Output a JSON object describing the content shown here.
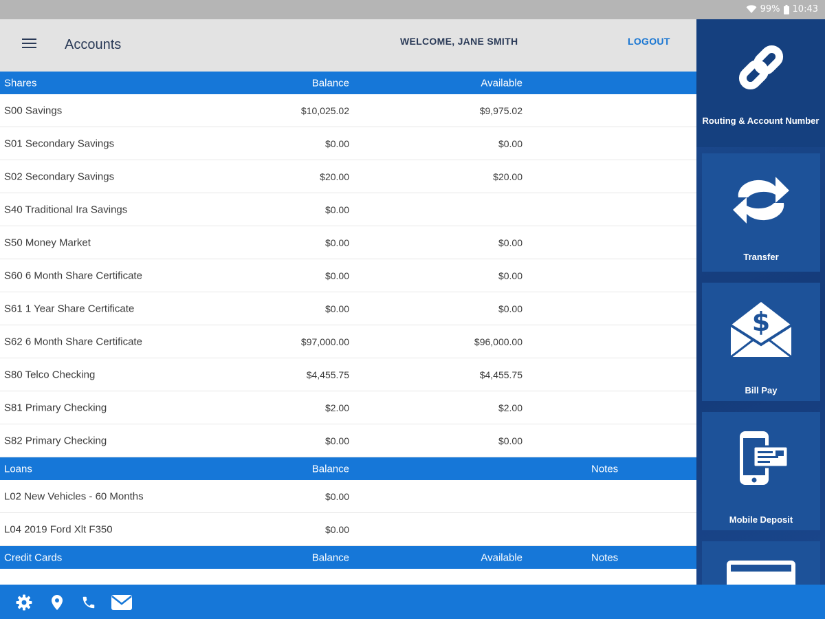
{
  "status_bar": {
    "battery": "99%",
    "time": "10:43"
  },
  "header": {
    "title": "Accounts",
    "welcome": "WELCOME, JANE SMITH",
    "logout": "LOGOUT"
  },
  "shares": {
    "headers": {
      "name": "Shares",
      "balance": "Balance",
      "available": "Available"
    },
    "rows": [
      {
        "name": "S00 Savings",
        "balance": "$10,025.02",
        "available": "$9,975.02"
      },
      {
        "name": "S01 Secondary Savings",
        "balance": "$0.00",
        "available": "$0.00"
      },
      {
        "name": "S02 Secondary Savings",
        "balance": "$20.00",
        "available": "$20.00"
      },
      {
        "name": "S40 Traditional Ira Savings",
        "balance": "$0.00",
        "available": ""
      },
      {
        "name": "S50 Money Market",
        "balance": "$0.00",
        "available": "$0.00"
      },
      {
        "name": "S60 6 Month Share Certificate",
        "balance": "$0.00",
        "available": "$0.00"
      },
      {
        "name": "S61 1 Year Share Certificate",
        "balance": "$0.00",
        "available": "$0.00"
      },
      {
        "name": "S62 6 Month Share Certificate",
        "balance": "$97,000.00",
        "available": "$96,000.00"
      },
      {
        "name": "S80 Telco Checking",
        "balance": "$4,455.75",
        "available": "$4,455.75"
      },
      {
        "name": "S81 Primary Checking",
        "balance": "$2.00",
        "available": "$2.00"
      },
      {
        "name": "S82 Primary Checking",
        "balance": "$0.00",
        "available": "$0.00"
      }
    ]
  },
  "loans": {
    "headers": {
      "name": "Loans",
      "balance": "Balance",
      "notes": "Notes"
    },
    "rows": [
      {
        "name": "L02 New Vehicles - 60 Months",
        "balance": "$0.00"
      },
      {
        "name": "L04 2019 Ford Xlt F350",
        "balance": "$0.00"
      }
    ]
  },
  "credit_cards": {
    "headers": {
      "name": "Credit Cards",
      "balance": "Balance",
      "available": "Available",
      "notes": "Notes"
    }
  },
  "sidebar": {
    "tiles": [
      {
        "label": "Routing & Account Number",
        "icon": "link-icon"
      },
      {
        "label": "Transfer",
        "icon": "transfer-arrows-icon"
      },
      {
        "label": "Bill Pay",
        "icon": "dollar-envelope-icon"
      },
      {
        "label": "Mobile Deposit",
        "icon": "phone-check-icon"
      },
      {
        "label": "",
        "icon": "card-icon"
      }
    ]
  },
  "bottom_bar": {
    "icons": [
      "gear-icon",
      "location-pin-icon",
      "phone-icon",
      "mail-icon"
    ]
  },
  "colors": {
    "primary_blue": "#1677d8",
    "sidebar_navy": "#15407f",
    "header_gray": "#e3e3e3",
    "title_navy": "#2a3a57"
  }
}
